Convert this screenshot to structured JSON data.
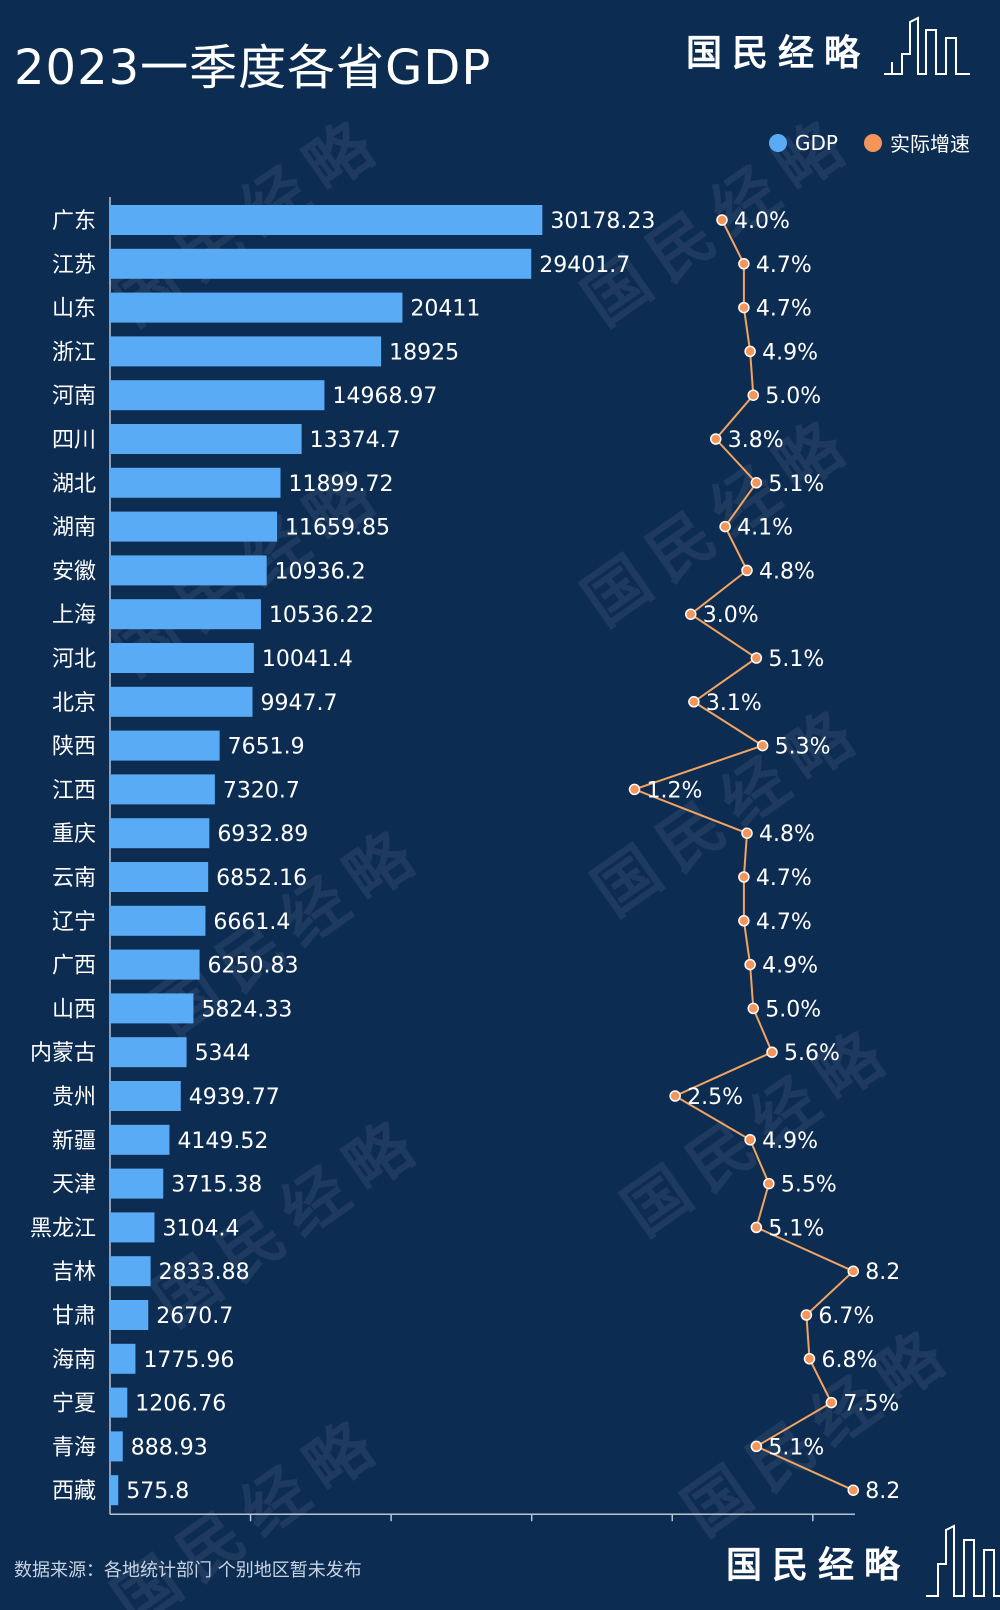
{
  "title": "2023一季度各省GDP",
  "brand": "国民经略",
  "footer": "数据来源：各地统计部门 个别地区暂未发布",
  "colors": {
    "background": "#0d2c52",
    "bar": "#5aabf5",
    "line": "#f3a460",
    "point": "#f5955a",
    "text": "#ffffff"
  },
  "legend": [
    {
      "label": "GDP",
      "color": "#5aabf5"
    },
    {
      "label": "实际增速",
      "color": "#f5955a"
    }
  ],
  "chart_data": {
    "type": "bar",
    "orientation": "horizontal",
    "title": "2023一季度各省GDP",
    "categories": [
      "广东",
      "江苏",
      "山东",
      "浙江",
      "河南",
      "四川",
      "湖北",
      "湖南",
      "安徽",
      "上海",
      "河北",
      "北京",
      "陕西",
      "江西",
      "重庆",
      "云南",
      "辽宁",
      "广西",
      "山西",
      "内蒙古",
      "贵州",
      "新疆",
      "天津",
      "黑龙江",
      "吉林",
      "甘肃",
      "海南",
      "宁夏",
      "青海",
      "西藏"
    ],
    "series": [
      {
        "name": "GDP",
        "type": "bar",
        "values": [
          30178.23,
          29401.7,
          20411,
          18925,
          14968.97,
          13374.7,
          11899.72,
          11659.85,
          10936.2,
          10536.22,
          10041.4,
          9947.7,
          7651.9,
          7320.7,
          6932.89,
          6852.16,
          6661.4,
          6250.83,
          5824.33,
          5344,
          4939.77,
          4149.52,
          3715.38,
          3104.4,
          2833.88,
          2670.7,
          1775.96,
          1206.76,
          888.93,
          575.8
        ],
        "labels": [
          "30178.23",
          "29401.7",
          "20411",
          "18925",
          "14968.97",
          "13374.7",
          "11899.72",
          "11659.85",
          "10936.2",
          "10536.22",
          "10041.4",
          "9947.7",
          "7651.9",
          "7320.7",
          "6932.89",
          "6852.16",
          "6661.4",
          "6250.83",
          "5824.33",
          "5344",
          "4939.77",
          "4149.52",
          "3715.38",
          "3104.4",
          "2833.88",
          "2670.7",
          "1775.96",
          "1206.76",
          "888.93",
          "575.8"
        ]
      },
      {
        "name": "实际增速",
        "type": "line",
        "values": [
          4.0,
          4.7,
          4.7,
          4.9,
          5.0,
          3.8,
          5.1,
          4.1,
          4.8,
          3.0,
          5.1,
          3.1,
          5.3,
          1.2,
          4.8,
          4.7,
          4.7,
          4.9,
          5.0,
          5.6,
          2.5,
          4.9,
          5.5,
          5.1,
          8.2,
          6.7,
          6.8,
          7.5,
          5.1,
          8.2
        ],
        "labels": [
          "4.0%",
          "4.7%",
          "4.7%",
          "4.9%",
          "5.0%",
          "3.8%",
          "5.1%",
          "4.1%",
          "4.8%",
          "3.0%",
          "5.1%",
          "3.1%",
          "5.3%",
          "1.2%",
          "4.8%",
          "4.7%",
          "4.7%",
          "4.9%",
          "5.0%",
          "5.6%",
          "2.5%",
          "4.9%",
          "5.5%",
          "5.1%",
          "8.2",
          "6.7%",
          "6.8%",
          "7.5%",
          "5.1%",
          "8.2"
        ]
      }
    ],
    "xlim": [
      0,
      52000
    ],
    "legend_position": "top-right",
    "grid": false
  }
}
